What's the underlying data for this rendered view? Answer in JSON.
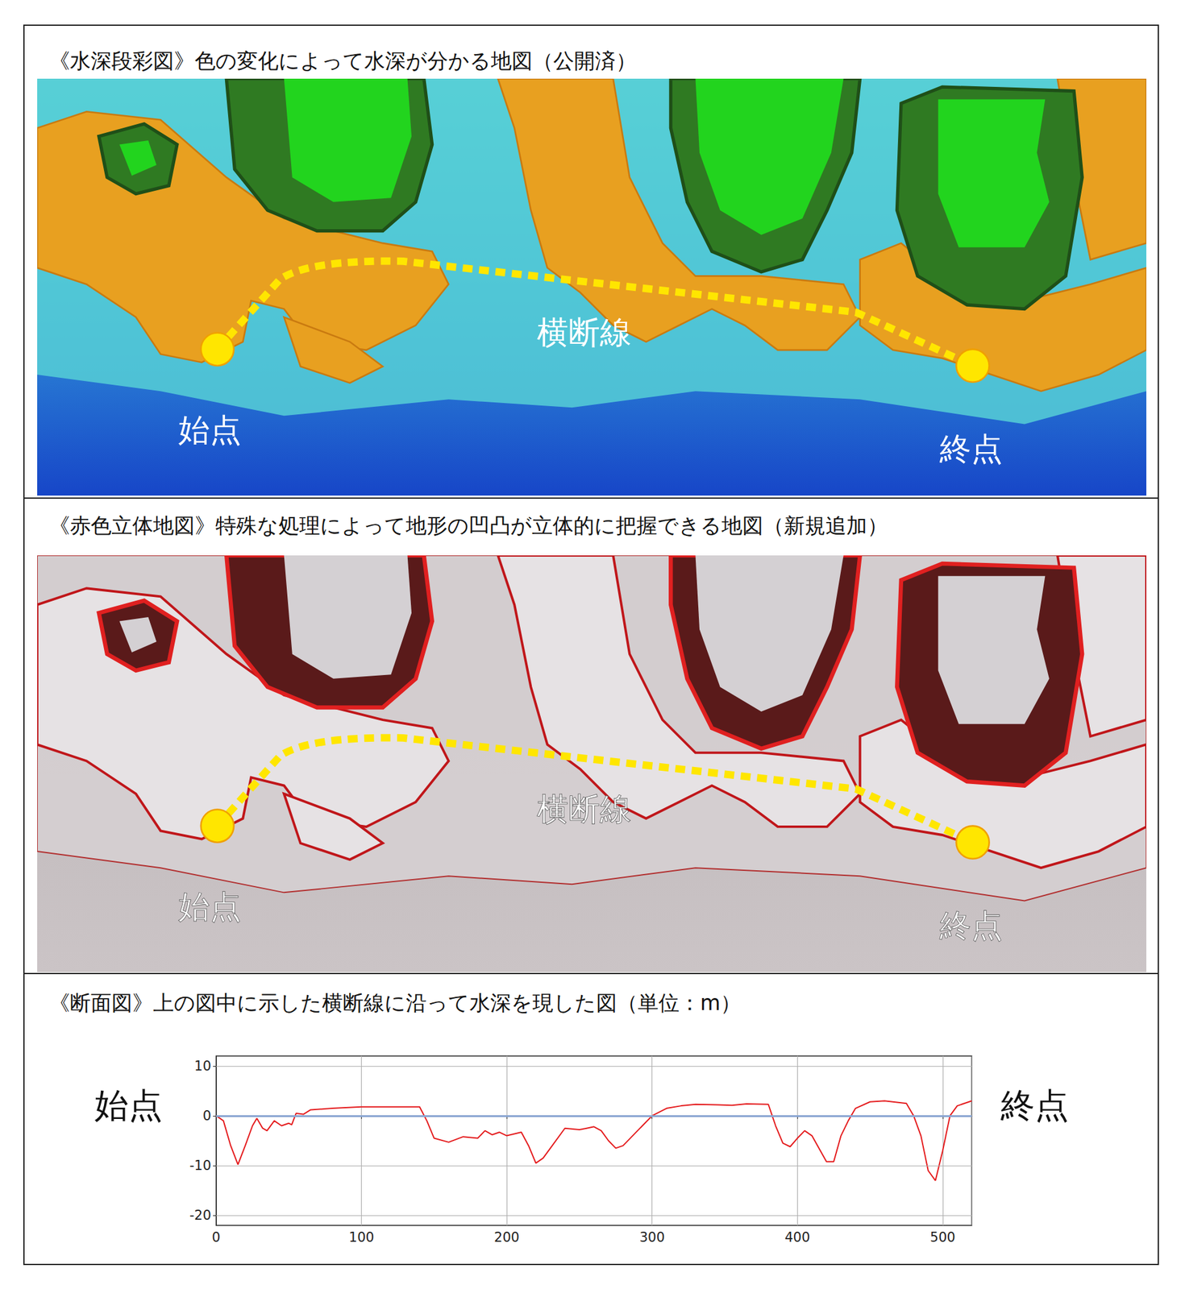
{
  "maps": [
    {
      "title": "《水深段彩図》色の変化によって水深が分かる地図（公開済）",
      "start_label": "始点",
      "end_label": "終点",
      "line_label": "横断線"
    },
    {
      "title": "《赤色立体地図》特殊な処理によって地形の凹凸が立体的に把握できる地図（新規追加）",
      "start_label": "始点",
      "end_label": "終点",
      "line_label": "横断線"
    }
  ],
  "chart_data": {
    "type": "line",
    "title": "《断面図》上の図中に示した横断線に沿って水深を現した図（単位：m）",
    "annotations": [
      "始点",
      "終点"
    ],
    "x": [
      0,
      5,
      10,
      15,
      20,
      25,
      28,
      32,
      35,
      40,
      45,
      50,
      52,
      55,
      60,
      65,
      80,
      100,
      140,
      145,
      150,
      160,
      170,
      180,
      185,
      190,
      195,
      200,
      210,
      215,
      220,
      225,
      230,
      240,
      250,
      255,
      260,
      265,
      270,
      275,
      280,
      290,
      300,
      310,
      320,
      330,
      345,
      355,
      365,
      380,
      385,
      390,
      395,
      400,
      405,
      410,
      420,
      425,
      430,
      435,
      440,
      450,
      460,
      475,
      480,
      485,
      490,
      495,
      500,
      505,
      510,
      520
    ],
    "values": [
      0,
      -1,
      -6,
      -9.8,
      -6,
      -2,
      -0.5,
      -2.5,
      -3,
      -1,
      -2,
      -1.5,
      -1.8,
      0.5,
      0.3,
      1.2,
      1.5,
      1.8,
      1.8,
      -1,
      -4.5,
      -5.3,
      -4.2,
      -4.5,
      -3,
      -3.8,
      -3.3,
      -4,
      -3.3,
      -6,
      -9.5,
      -8.5,
      -6.5,
      -2.5,
      -2.8,
      -2.5,
      -2.2,
      -3,
      -5,
      -6.5,
      -6,
      -3,
      0,
      1.5,
      2,
      2.3,
      2.2,
      2.1,
      2.4,
      2.3,
      -2,
      -5.5,
      -6.2,
      -4.5,
      -3,
      -4,
      -9.2,
      -9.2,
      -4,
      -1,
      1.5,
      2.8,
      3,
      2.5,
      0,
      -4,
      -11,
      -13,
      -7,
      0,
      2,
      3
    ],
    "color": "#e41a1c",
    "reference_line": {
      "y": 0,
      "color": "#8aa6d2"
    },
    "xlim": [
      0,
      520
    ],
    "xticks": [
      0,
      100,
      200,
      300,
      400,
      500
    ],
    "ylim": [
      -22,
      12
    ],
    "yticks": [
      -20,
      -10,
      0,
      10
    ],
    "grid": true
  }
}
